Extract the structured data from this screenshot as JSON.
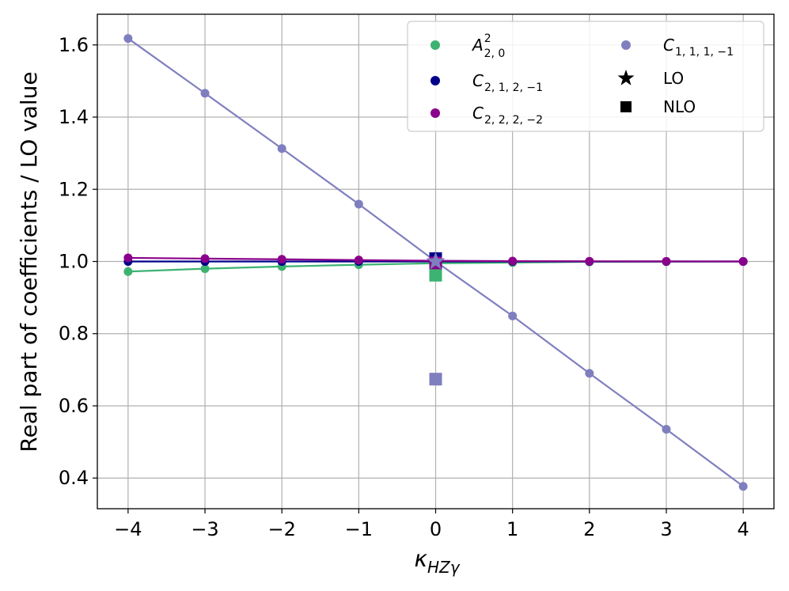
{
  "chart_data": {
    "type": "scatter",
    "title": "",
    "xlabel": "κ",
    "xlabel_sub": "HZγ",
    "ylabel": "Real part of coefficients / LO value",
    "xlim": [
      -4.4,
      4.4
    ],
    "ylim": [
      0.315,
      1.685
    ],
    "x_ticks": [
      -4,
      -3,
      -2,
      -1,
      0,
      1,
      2,
      3,
      4
    ],
    "x_tick_labels": [
      "−4",
      "−3",
      "−2",
      "−1",
      "0",
      "1",
      "2",
      "3",
      "4"
    ],
    "y_ticks": [
      0.4,
      0.6,
      0.8,
      1.0,
      1.2,
      1.4,
      1.6
    ],
    "y_tick_labels": [
      "0.4",
      "0.6",
      "0.8",
      "1.0",
      "1.2",
      "1.4",
      "1.6"
    ],
    "grid": true,
    "legend_position": "top-right",
    "x": [
      -4,
      -3,
      -2,
      -1,
      0,
      1,
      2,
      3,
      4
    ],
    "series": [
      {
        "id": "A",
        "name": "A",
        "name_sup": "2",
        "name_sub": "2, 0",
        "color": "#3cb371",
        "values": [
          0.972,
          0.98,
          0.986,
          0.991,
          0.995,
          0.997,
          0.999,
          0.9995,
          1.0
        ],
        "lo": 1.0,
        "nlo": 0.962
      },
      {
        "id": "C212",
        "name": "C",
        "name_sub": "2, 1, 2, −1",
        "color": "#00008b",
        "values": [
          1.0,
          1.0,
          1.0,
          1.0,
          1.0,
          1.0,
          1.0,
          1.0,
          1.0
        ],
        "lo": 1.0,
        "nlo": 1.008
      },
      {
        "id": "C222",
        "name": "C",
        "name_sub": "2, 2, 2, −2",
        "color": "#8b008b",
        "values": [
          1.01,
          1.008,
          1.006,
          1.004,
          1.002,
          1.001,
          1.0005,
          1.0002,
          1.0
        ],
        "lo": 1.0,
        "nlo": 0.996
      },
      {
        "id": "C111",
        "name": "C",
        "name_sub": "1, 1, 1, −1",
        "color": "#7f7fbf",
        "values": [
          1.618,
          1.466,
          1.313,
          1.159,
          1.0,
          0.849,
          0.69,
          0.535,
          0.377
        ],
        "lo": 1.0,
        "nlo": 0.674
      }
    ],
    "marker_legend": [
      {
        "marker": "star",
        "label": "LO"
      },
      {
        "marker": "square",
        "label": "NLO"
      }
    ],
    "lo_nlo_x": 0
  }
}
